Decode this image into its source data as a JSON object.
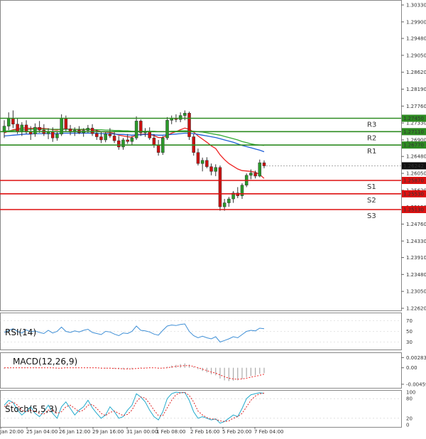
{
  "chart_data": [
    {
      "type": "candlestick",
      "panel": "price",
      "x_ticks": [
        "Jan 20:00",
        "25 Jan 04:00",
        "26 Jan 12:00",
        "29 Jan 16:00",
        "31 Jan 00:00",
        "1 Feb 08:00",
        "2 Feb 16:00",
        "5 Feb 20:00",
        "7 Feb 04:00"
      ],
      "y_ticks": [
        "1.30330",
        "1.29900",
        "1.29480",
        "1.29050",
        "1.28620",
        "1.28190",
        "1.27760",
        "1.27330",
        "1.26900",
        "1.26480",
        "1.26050",
        "1.25620",
        "1.25190",
        "1.24760",
        "1.24330",
        "1.23910",
        "1.23480",
        "1.23050",
        "1.22620"
      ],
      "y_tick_values": [
        1.3033,
        1.299,
        1.2948,
        1.2905,
        1.2862,
        1.2819,
        1.2776,
        1.2733,
        1.269,
        1.2648,
        1.2605,
        1.2562,
        1.2519,
        1.2476,
        1.2433,
        1.2391,
        1.2348,
        1.2305,
        1.2262
      ],
      "ylim": [
        1.2262,
        1.3033
      ],
      "last_price": 1.26242,
      "last_price_label": "1.26242",
      "levels": [
        {
          "name": "R3",
          "value": 1.2745,
          "label": "1.27450",
          "color": "#2e8b22"
        },
        {
          "name": "R2",
          "value": 1.2711,
          "label": "1.27110",
          "color": "#2e8b22"
        },
        {
          "name": "R1",
          "value": 1.2677,
          "label": "1.26770",
          "color": "#2e8b22"
        },
        {
          "name": "S1",
          "value": 1.2587,
          "label": "1.25870",
          "color": "#dd1111"
        },
        {
          "name": "S2",
          "value": 1.2553,
          "label": "1.25530",
          "color": "#dd1111"
        },
        {
          "name": "S3",
          "value": 1.2513,
          "label": "1.25130",
          "color": "#dd1111"
        }
      ],
      "candles": [
        [
          1.271,
          1.274,
          1.2695,
          1.2725
        ],
        [
          1.2725,
          1.276,
          1.2715,
          1.2745
        ],
        [
          1.2745,
          1.2765,
          1.272,
          1.273
        ],
        [
          1.273,
          1.2745,
          1.2705,
          1.2712
        ],
        [
          1.2712,
          1.2735,
          1.27,
          1.2728
        ],
        [
          1.2728,
          1.274,
          1.2705,
          1.271
        ],
        [
          1.271,
          1.2725,
          1.269,
          1.2705
        ],
        [
          1.2705,
          1.2732,
          1.2698,
          1.2722
        ],
        [
          1.2722,
          1.2738,
          1.2708,
          1.2715
        ],
        [
          1.2715,
          1.273,
          1.27,
          1.2706
        ],
        [
          1.2706,
          1.272,
          1.2692,
          1.2712
        ],
        [
          1.2712,
          1.2722,
          1.2685,
          1.2695
        ],
        [
          1.2695,
          1.2712,
          1.2688,
          1.2705
        ],
        [
          1.2705,
          1.2755,
          1.27,
          1.2745
        ],
        [
          1.2745,
          1.2752,
          1.271,
          1.2718
        ],
        [
          1.2718,
          1.2728,
          1.2702,
          1.271
        ],
        [
          1.271,
          1.2722,
          1.27,
          1.2715
        ],
        [
          1.2715,
          1.2725,
          1.2705,
          1.2708
        ],
        [
          1.2708,
          1.272,
          1.2698,
          1.2714
        ],
        [
          1.2714,
          1.2728,
          1.2708,
          1.272
        ],
        [
          1.272,
          1.273,
          1.27,
          1.2706
        ],
        [
          1.2706,
          1.2716,
          1.269,
          1.2698
        ],
        [
          1.2698,
          1.2712,
          1.2682,
          1.269
        ],
        [
          1.269,
          1.2712,
          1.2684,
          1.2705
        ],
        [
          1.2705,
          1.272,
          1.2695,
          1.27
        ],
        [
          1.27,
          1.2712,
          1.2682,
          1.2688
        ],
        [
          1.2688,
          1.27,
          1.2665,
          1.2672
        ],
        [
          1.2672,
          1.2695,
          1.2665,
          1.269
        ],
        [
          1.269,
          1.2705,
          1.268,
          1.2686
        ],
        [
          1.2686,
          1.27,
          1.2676,
          1.2695
        ],
        [
          1.2695,
          1.275,
          1.269,
          1.2738
        ],
        [
          1.2738,
          1.2742,
          1.27,
          1.2708
        ],
        [
          1.2708,
          1.272,
          1.2698,
          1.2712
        ],
        [
          1.2712,
          1.2722,
          1.269,
          1.2695
        ],
        [
          1.2695,
          1.2705,
          1.267,
          1.2676
        ],
        [
          1.2676,
          1.269,
          1.265,
          1.2658
        ],
        [
          1.2658,
          1.27,
          1.2652,
          1.2695
        ],
        [
          1.2695,
          1.2748,
          1.269,
          1.274
        ],
        [
          1.274,
          1.2752,
          1.273,
          1.2745
        ],
        [
          1.2745,
          1.2755,
          1.2735,
          1.2742
        ],
        [
          1.2742,
          1.276,
          1.2735,
          1.2752
        ],
        [
          1.2752,
          1.2765,
          1.274,
          1.2758
        ],
        [
          1.2758,
          1.2762,
          1.269,
          1.2698
        ],
        [
          1.2698,
          1.2705,
          1.265,
          1.2658
        ],
        [
          1.2658,
          1.2668,
          1.2625,
          1.263
        ],
        [
          1.263,
          1.2645,
          1.261,
          1.2638
        ],
        [
          1.2638,
          1.2646,
          1.2618,
          1.2622
        ],
        [
          1.2622,
          1.263,
          1.26,
          1.261
        ],
        [
          1.261,
          1.2628,
          1.2598,
          1.262
        ],
        [
          1.262,
          1.2625,
          1.251,
          1.252
        ],
        [
          1.252,
          1.254,
          1.251,
          1.253
        ],
        [
          1.253,
          1.2545,
          1.252,
          1.254
        ],
        [
          1.254,
          1.256,
          1.253,
          1.2555
        ],
        [
          1.2555,
          1.257,
          1.2542,
          1.2548
        ],
        [
          1.2548,
          1.258,
          1.254,
          1.2575
        ],
        [
          1.2575,
          1.2605,
          1.257,
          1.26
        ],
        [
          1.26,
          1.2615,
          1.259,
          1.2606
        ],
        [
          1.2606,
          1.2612,
          1.2592,
          1.2598
        ],
        [
          1.2598,
          1.264,
          1.2595,
          1.2632
        ],
        [
          1.2632,
          1.2638,
          1.2618,
          1.2624
        ]
      ],
      "ma_series": [
        {
          "color": "#ee2222",
          "values": [
            1.2708,
            1.2712,
            1.2716,
            1.2718,
            1.272,
            1.272,
            1.2719,
            1.272,
            1.272,
            1.2719,
            1.2718,
            1.2716,
            1.2715,
            1.2718,
            1.2718,
            1.2717,
            1.2717,
            1.2716,
            1.2716,
            1.2717,
            1.2716,
            1.2714,
            1.2711,
            1.271,
            1.2709,
            1.2706,
            1.2702,
            1.27,
            1.2698,
            1.2697,
            1.2703,
            1.2704,
            1.2705,
            1.2704,
            1.2701,
            1.2696,
            1.2696,
            1.2702,
            1.2707,
            1.2711,
            1.2716,
            1.272,
            1.2717,
            1.271,
            1.27,
            1.2692,
            1.2684,
            1.2675,
            1.2668,
            1.2652,
            1.264,
            1.263,
            1.2623,
            1.2616,
            1.2612,
            1.2611,
            1.261,
            1.2608,
            1.2602,
            1.2592
          ]
        },
        {
          "color": "#1f5fd6",
          "values": [
            1.27,
            1.2701,
            1.2702,
            1.2703,
            1.2704,
            1.2705,
            1.2705,
            1.2706,
            1.2706,
            1.2706,
            1.2706,
            1.2706,
            1.2706,
            1.2707,
            1.2707,
            1.2707,
            1.2707,
            1.2707,
            1.2707,
            1.2707,
            1.2707,
            1.2707,
            1.2706,
            1.2706,
            1.2706,
            1.2705,
            1.2704,
            1.2704,
            1.2703,
            1.2702,
            1.2703,
            1.2703,
            1.2704,
            1.2704,
            1.2703,
            1.2702,
            1.2702,
            1.2703,
            1.2704,
            1.2705,
            1.2706,
            1.2707,
            1.2707,
            1.2706,
            1.2704,
            1.2702,
            1.27,
            1.2698,
            1.2696,
            1.2693,
            1.269,
            1.2687,
            1.2684,
            1.268,
            1.2676,
            1.2673,
            1.267,
            1.2667,
            1.2664,
            1.266
          ]
        },
        {
          "color": "#33aa33",
          "values": [
            1.2712,
            1.2713,
            1.2714,
            1.2715,
            1.2716,
            1.2716,
            1.2717,
            1.2717,
            1.2717,
            1.2717,
            1.2717,
            1.2717,
            1.2717,
            1.2717,
            1.2717,
            1.2717,
            1.2717,
            1.2717,
            1.2717,
            1.2717,
            1.2716,
            1.2716,
            1.2716,
            1.2715,
            1.2715,
            1.2714,
            1.2714,
            1.2713,
            1.2713,
            1.2712,
            1.2712,
            1.2712,
            1.2712,
            1.2712,
            1.2712,
            1.2711,
            1.2711,
            1.2711,
            1.2712,
            1.2712,
            1.2713,
            1.2713,
            1.2713,
            1.2712,
            1.2711,
            1.271,
            1.2708,
            1.2706,
            1.2704,
            1.2702,
            1.2699,
            1.2696,
            1.2693,
            1.269,
            1.2686,
            1.2683,
            1.268,
            1.2678,
            1.2677,
            1.2676
          ]
        }
      ]
    },
    {
      "type": "line",
      "panel": "rsi",
      "title": "RSI(14)",
      "y_ticks": [
        "70",
        "50",
        "30"
      ],
      "y_tick_values": [
        70,
        50,
        30
      ],
      "ylim": [
        20,
        80
      ],
      "series": [
        {
          "color": "#3f8fd6",
          "values": [
            48,
            52,
            55,
            50,
            47,
            53,
            49,
            51,
            48,
            46,
            52,
            47,
            50,
            58,
            50,
            48,
            51,
            49,
            52,
            54,
            48,
            46,
            44,
            50,
            49,
            45,
            42,
            47,
            46,
            50,
            60,
            52,
            51,
            49,
            45,
            43,
            52,
            60,
            62,
            61,
            63,
            64,
            50,
            42,
            38,
            41,
            38,
            36,
            40,
            30,
            33,
            36,
            40,
            38,
            44,
            50,
            52,
            51,
            56,
            55
          ]
        }
      ]
    },
    {
      "type": "bar",
      "panel": "macd",
      "title": "MACD(12,26,9)",
      "y_ticks": [
        "0.002831",
        "0.00",
        "-0.00459"
      ],
      "y_tick_values": [
        0.002831,
        0.0,
        -0.00459
      ],
      "ylim": [
        -0.0052,
        0.0035
      ],
      "histogram": [
        -0.0003,
        -0.0002,
        -0.0001,
        0.0,
        0.0001,
        0.0001,
        0.0,
        0.0001,
        0.0001,
        0.0,
        0.0,
        -0.0001,
        -0.0001,
        0.0001,
        0.0001,
        0.0,
        0.0,
        0.0,
        0.0,
        0.0001,
        0.0,
        -0.0001,
        -0.0002,
        -0.0002,
        -0.0002,
        -0.0003,
        -0.0004,
        -0.0004,
        -0.0004,
        -0.0004,
        0.0,
        0.0001,
        0.0001,
        0.0001,
        0.0,
        -0.0002,
        -0.0001,
        0.0003,
        0.0006,
        0.0008,
        0.001,
        0.0012,
        0.0009,
        0.0003,
        -0.0004,
        -0.0009,
        -0.0013,
        -0.0018,
        -0.0021,
        -0.003,
        -0.0035,
        -0.0037,
        -0.0036,
        -0.0035,
        -0.0031,
        -0.0026,
        -0.0023,
        -0.0021,
        -0.0017,
        -0.0015
      ],
      "signal": [
        0.0,
        0.0,
        0.0,
        0.0,
        0.0,
        0.0,
        0.0,
        0.0,
        0.0,
        0.0,
        0.0,
        0.0,
        -0.0001,
        -0.0001,
        0.0,
        0.0,
        0.0,
        0.0,
        0.0,
        0.0,
        0.0,
        0.0,
        -0.0001,
        -0.0001,
        -0.0001,
        -0.0002,
        -0.0002,
        -0.0003,
        -0.0003,
        -0.0003,
        -0.0002,
        -0.0001,
        -0.0001,
        0.0,
        0.0,
        -0.0001,
        -0.0001,
        0.0,
        0.0002,
        0.0004,
        0.0005,
        0.0006,
        0.0006,
        0.0004,
        0.0,
        -0.0004,
        -0.0008,
        -0.0012,
        -0.0015,
        -0.002,
        -0.0025,
        -0.0029,
        -0.0031,
        -0.0032,
        -0.0031,
        -0.0029,
        -0.0026,
        -0.0024,
        -0.0021,
        -0.0018
      ],
      "histogram_color": "#aaaaaa",
      "signal_color": "#ee2222"
    },
    {
      "type": "line",
      "panel": "stoch",
      "title": "Stoch(5,5,3)",
      "y_ticks": [
        "100",
        "80",
        "20",
        "0"
      ],
      "y_tick_values": [
        100,
        80,
        20,
        0
      ],
      "ylim": [
        0,
        100
      ],
      "series": [
        {
          "color": "#22aacc",
          "values": [
            60,
            75,
            68,
            45,
            30,
            42,
            55,
            35,
            25,
            40,
            60,
            35,
            20,
            55,
            70,
            50,
            30,
            45,
            55,
            75,
            52,
            35,
            20,
            30,
            55,
            40,
            20,
            25,
            45,
            60,
            95,
            85,
            70,
            45,
            25,
            15,
            40,
            80,
            95,
            100,
            98,
            99,
            75,
            40,
            20,
            25,
            20,
            15,
            18,
            5,
            10,
            20,
            30,
            25,
            50,
            80,
            92,
            95,
            98,
            96
          ]
        },
        {
          "color": "#dd2222",
          "values": [
            55,
            65,
            70,
            60,
            45,
            40,
            45,
            42,
            35,
            33,
            45,
            45,
            35,
            40,
            55,
            60,
            50,
            40,
            45,
            60,
            62,
            50,
            35,
            28,
            38,
            42,
            35,
            28,
            32,
            45,
            70,
            85,
            82,
            65,
            45,
            28,
            28,
            52,
            75,
            92,
            98,
            99,
            90,
            70,
            42,
            30,
            22,
            18,
            17,
            12,
            10,
            12,
            20,
            25,
            35,
            55,
            75,
            88,
            95,
            97
          ]
        }
      ]
    }
  ]
}
